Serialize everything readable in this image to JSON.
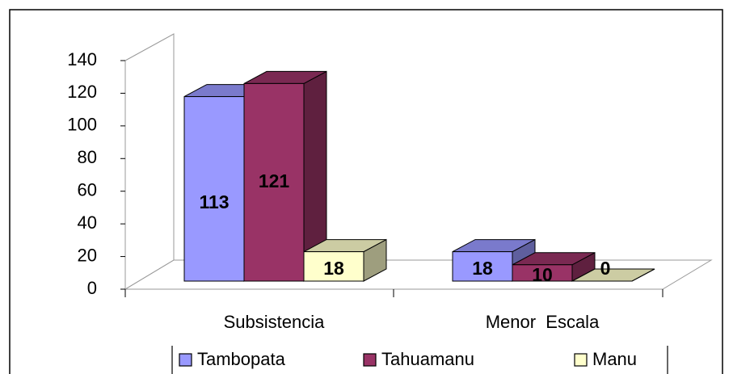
{
  "chart_data": {
    "type": "bar",
    "categories": [
      "Subsistencia",
      "Menor  Escala"
    ],
    "series": [
      {
        "name": "Tambopata",
        "color": "#9999ff",
        "values": [
          113,
          18
        ]
      },
      {
        "name": "Tahuamanu",
        "color": "#993366",
        "values": [
          121,
          10
        ]
      },
      {
        "name": "Manu",
        "color": "#ffffcc",
        "values": [
          18,
          0
        ]
      }
    ],
    "ylim": [
      0,
      140
    ],
    "yticks": [
      0,
      20,
      40,
      60,
      80,
      100,
      120,
      140
    ]
  }
}
